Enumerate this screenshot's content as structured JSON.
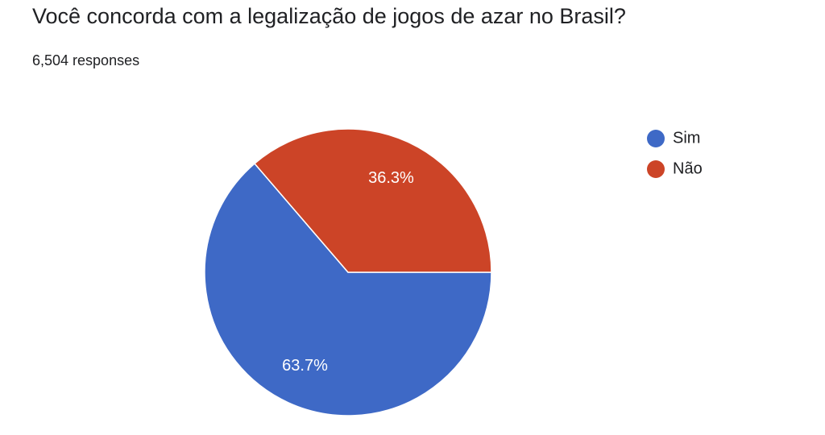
{
  "chart_data": {
    "type": "pie",
    "title": "Você concorda com a legalização de jogos de azar no Brasil?",
    "subtitle": "6,504 responses",
    "categories": [
      "Sim",
      "Não"
    ],
    "values": [
      63.7,
      36.3
    ],
    "value_labels": [
      "63.7%",
      "36.3%"
    ],
    "colors": [
      "#3e69c6",
      "#cc4427"
    ],
    "legend": "right"
  }
}
